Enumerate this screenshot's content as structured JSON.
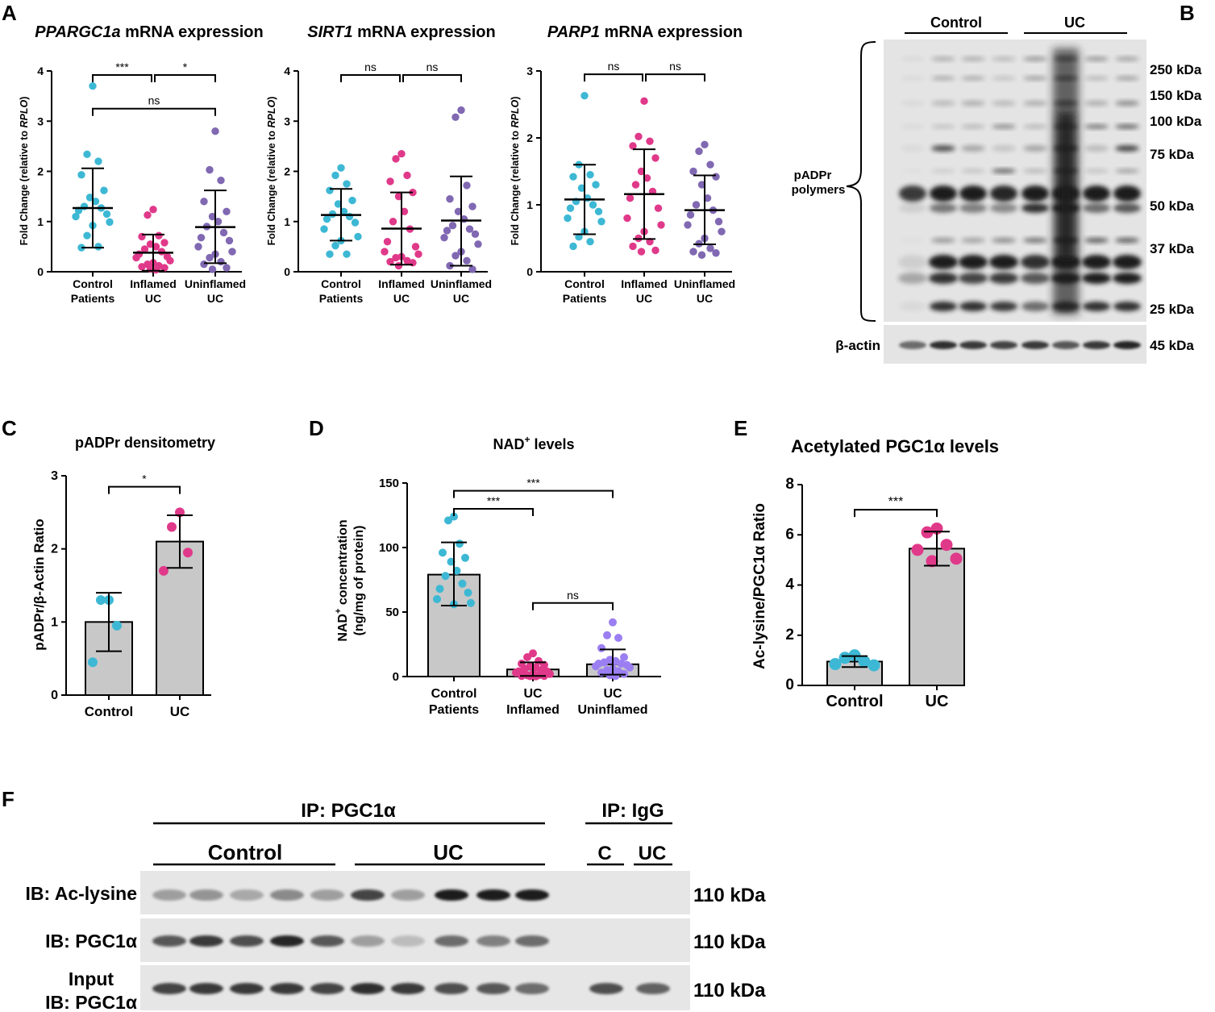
{
  "panel_letters": {
    "a": "A",
    "b": "B",
    "c": "C",
    "d": "D",
    "e": "E",
    "f": "F"
  },
  "colors": {
    "control": "#3db8d4",
    "inflamed": "#e0398a",
    "uninflamed": "#8068b2",
    "uninflamed_d": "#9b7ff2",
    "bar": "#c8c8c8",
    "axis": "#000000",
    "blot_bg": "#e6e6e6",
    "band": "#1a1a1a"
  },
  "panel_a": [
    {
      "title_italic": "PPARGC1a",
      "title_rest": " mRNA expression",
      "ylabel_pre": "Fold Change (relative to ",
      "ylabel_italic": "RPLO",
      "ylabel_post": ")"
    },
    {
      "title_italic": "SIRT1",
      "title_rest": " mRNA expression",
      "ylabel_pre": "Fold Change (relative to ",
      "ylabel_italic": "RPLO",
      "ylabel_post": ")"
    },
    {
      "title_italic": "PARP1",
      "title_rest": " mRNA expression",
      "ylabel_pre": "Fold Change (relative to ",
      "ylabel_italic": "RPLO",
      "ylabel_post": ")"
    }
  ],
  "panel_b": {
    "groups": [
      "Control",
      "UC"
    ],
    "brace_label": [
      "pADPr",
      "polymers"
    ],
    "mw_labels": [
      "250 kDa",
      "150 kDa",
      "100 kDa",
      "75 kDa",
      "50 kDa",
      "37 kDa",
      "25 kDa"
    ],
    "actin_label": "β-actin",
    "actin_mw": "45 kDa"
  },
  "panel_f": {
    "ip_main": "IP: PGC1α",
    "ip_igg": "IP: IgG",
    "group_control": "Control",
    "group_uc": "UC",
    "igg_c": "C",
    "igg_uc": "UC",
    "row1_label": "IB: Ac-lysine",
    "row2_label": "IB: PGC1α",
    "row3_label_1": "Input",
    "row3_label_2": "IB: PGC1α",
    "mw": [
      "110 kDa",
      "110 kDa",
      "110 kDa"
    ]
  },
  "chart_data": [
    {
      "id": "A1",
      "type": "scatter",
      "title": "PPARGC1a mRNA expression",
      "ylabel": "Fold Change (relative to RPLO)",
      "ylim": [
        0,
        4
      ],
      "yticks": [
        0,
        1,
        2,
        3,
        4
      ],
      "categories": [
        "Control\nPatients",
        "Inflamed\nUC",
        "Uninflamed\nUC"
      ],
      "groups": [
        {
          "name": "Control Patients",
          "color_key": "control",
          "mean": 1.27,
          "sd_low": 0.48,
          "sd_high": 2.06,
          "points": [
            3.7,
            2.34,
            2.2,
            1.93,
            1.62,
            1.48,
            1.4,
            1.3,
            1.27,
            1.22,
            1.15,
            1.1,
            0.99,
            0.92,
            0.72,
            0.5,
            0.48
          ]
        },
        {
          "name": "Inflamed UC",
          "color_key": "inflamed",
          "mean": 0.38,
          "sd_low": 0.02,
          "sd_high": 0.74,
          "points": [
            1.24,
            1.13,
            0.72,
            0.7,
            0.58,
            0.55,
            0.5,
            0.45,
            0.4,
            0.35,
            0.3,
            0.28,
            0.22,
            0.18,
            0.15,
            0.12,
            0.1,
            0.08,
            0.06,
            0.04
          ]
        },
        {
          "name": "Uninflamed UC",
          "color_key": "uninflamed",
          "mean": 0.89,
          "sd_low": 0.17,
          "sd_high": 1.62,
          "points": [
            2.8,
            2.03,
            1.82,
            1.4,
            1.2,
            1.1,
            1.0,
            0.9,
            0.78,
            0.68,
            0.62,
            0.5,
            0.4,
            0.35,
            0.28,
            0.2,
            0.15,
            0.08,
            0.05
          ]
        }
      ],
      "annotations": [
        {
          "from": 0,
          "to": 1,
          "text": "***",
          "y": 3.92
        },
        {
          "from": 1,
          "to": 2,
          "text": "*",
          "y": 3.92
        },
        {
          "from": 0,
          "to": 2,
          "text": "ns",
          "y": 3.25
        }
      ]
    },
    {
      "id": "A2",
      "type": "scatter",
      "title": "SIRT1 mRNA expression",
      "ylabel": "Fold Change (relative to RPLO)",
      "ylim": [
        0,
        4
      ],
      "yticks": [
        0,
        1,
        2,
        3,
        4
      ],
      "categories": [
        "Control\nPatients",
        "Inflamed\nUC",
        "Uninflamed\nUC"
      ],
      "groups": [
        {
          "name": "Control Patients",
          "color_key": "control",
          "mean": 1.13,
          "sd_low": 0.62,
          "sd_high": 1.65,
          "points": [
            2.07,
            1.92,
            1.75,
            1.62,
            1.42,
            1.35,
            1.2,
            1.15,
            1.1,
            1.05,
            0.98,
            0.85,
            0.7,
            0.62,
            0.52,
            0.35,
            0.35
          ]
        },
        {
          "name": "Inflamed UC",
          "color_key": "inflamed",
          "mean": 0.86,
          "sd_low": 0.14,
          "sd_high": 1.58,
          "points": [
            2.35,
            2.25,
            1.92,
            1.8,
            1.58,
            1.5,
            1.2,
            1.0,
            0.85,
            0.6,
            0.5,
            0.4,
            0.35,
            0.3,
            0.28,
            0.22,
            0.2,
            0.18,
            0.12
          ]
        },
        {
          "name": "Uninflamed UC",
          "color_key": "uninflamed",
          "mean": 1.02,
          "sd_low": 0.12,
          "sd_high": 1.9,
          "points": [
            3.22,
            3.08,
            1.72,
            1.45,
            1.3,
            1.2,
            1.05,
            0.92,
            0.85,
            0.82,
            0.75,
            0.68,
            0.55,
            0.4,
            0.32,
            0.22,
            0.12,
            0.05
          ]
        }
      ],
      "annotations": [
        {
          "from": 0,
          "to": 1,
          "text": "ns",
          "y": 3.92
        },
        {
          "from": 1,
          "to": 2,
          "text": "ns",
          "y": 3.92
        }
      ]
    },
    {
      "id": "A3",
      "type": "scatter",
      "title": "PARP1 mRNA expression",
      "ylabel": "Fold Change (relative to RPLO)",
      "ylim": [
        0,
        3
      ],
      "yticks": [
        0,
        1,
        2,
        3
      ],
      "categories": [
        "Control\nPatients",
        "Inflamed\nUC",
        "Uninflamed\nUC"
      ],
      "groups": [
        {
          "name": "Control Patients",
          "color_key": "control",
          "mean": 1.08,
          "sd_low": 0.56,
          "sd_high": 1.6,
          "points": [
            2.63,
            1.6,
            1.45,
            1.42,
            1.3,
            1.25,
            1.1,
            1.05,
            1.0,
            0.95,
            0.9,
            0.8,
            0.75,
            0.6,
            0.52,
            0.45,
            0.38
          ]
        },
        {
          "name": "Inflamed UC",
          "color_key": "inflamed",
          "mean": 1.16,
          "sd_low": 0.49,
          "sd_high": 1.83,
          "points": [
            2.55,
            2.02,
            1.95,
            1.88,
            1.7,
            1.5,
            1.4,
            1.3,
            1.2,
            1.1,
            0.95,
            0.8,
            0.7,
            0.6,
            0.5,
            0.45,
            0.38,
            0.32,
            0.3
          ]
        },
        {
          "name": "Uninflamed UC",
          "color_key": "uninflamed",
          "mean": 0.92,
          "sd_low": 0.41,
          "sd_high": 1.44,
          "points": [
            1.9,
            1.8,
            1.6,
            1.5,
            1.42,
            1.3,
            1.1,
            1.0,
            0.92,
            0.85,
            0.75,
            0.7,
            0.6,
            0.5,
            0.42,
            0.35,
            0.3,
            0.28,
            0.25
          ]
        }
      ],
      "annotations": [
        {
          "from": 0,
          "to": 1,
          "text": "ns",
          "y": 2.95
        },
        {
          "from": 1,
          "to": 2,
          "text": "ns",
          "y": 2.95
        }
      ]
    },
    {
      "id": "C",
      "type": "bar",
      "title": "pADPr densitometry",
      "ylabel": "pADPr/β-Actin Ratio",
      "ylim": [
        0,
        3
      ],
      "yticks": [
        0,
        1,
        2,
        3
      ],
      "categories": [
        "Control",
        "UC"
      ],
      "values": [
        1.0,
        2.1
      ],
      "sd": [
        0.4,
        0.36
      ],
      "points": [
        [
          1.3,
          1.3,
          0.95,
          0.45
        ],
        [
          2.5,
          2.3,
          1.95,
          1.7
        ]
      ],
      "color_keys": [
        "control",
        "inflamed"
      ],
      "annotations": [
        {
          "from": 0,
          "to": 1,
          "text": "*",
          "y": 2.85
        }
      ]
    },
    {
      "id": "D",
      "type": "bar",
      "title": "NAD+ levels",
      "title_main": "NAD",
      "title_sup": "+",
      "title_rest": " levels",
      "ylabel_line1_main": "NAD",
      "ylabel_line1_sup": "+",
      "ylabel_line1_rest": " concentration",
      "ylabel_line2": "(ng/mg of protein)",
      "ylabel": "NAD+ concentration (ng/mg of protein)",
      "ylim": [
        0,
        150
      ],
      "yticks": [
        0,
        50,
        100,
        150
      ],
      "categories": [
        "Control\nPatients",
        "UC\nInflamed",
        "UC\nUninflamed"
      ],
      "values": [
        79,
        5.5,
        9.5
      ],
      "sd_low": [
        55,
        0.5,
        1.5
      ],
      "sd_high": [
        104,
        11,
        21
      ],
      "points": [
        [
          124,
          121,
          103,
          96,
          92,
          89,
          82,
          78,
          72,
          68,
          65,
          60,
          57,
          56
        ],
        [
          18,
          15,
          12,
          10,
          9,
          8,
          7,
          6,
          5,
          4,
          4,
          3,
          2,
          2,
          1,
          1,
          0.5,
          0.5,
          0.3,
          0.2
        ],
        [
          42,
          32,
          30,
          22,
          15,
          13,
          12,
          11,
          10,
          10,
          9,
          8,
          7,
          6,
          5,
          4,
          3,
          2,
          1,
          0.5
        ]
      ],
      "color_keys": [
        "control",
        "inflamed",
        "uninflamed_d"
      ],
      "annotations": [
        {
          "from": 0,
          "to": 1,
          "text": "***",
          "y": 130
        },
        {
          "from": 0,
          "to": 2,
          "text": "***",
          "y": 144
        },
        {
          "from": 1,
          "to": 2,
          "text": "ns",
          "y": 57
        }
      ]
    },
    {
      "id": "E",
      "type": "bar",
      "title": "Acetylated PGC1α levels",
      "ylabel": "Ac-lysine/PGC1α Ratio",
      "ylim": [
        0,
        8
      ],
      "yticks": [
        0,
        2,
        4,
        6,
        8
      ],
      "categories": [
        "Control",
        "UC"
      ],
      "values": [
        0.95,
        5.45
      ],
      "sd": [
        0.22,
        0.68
      ],
      "points": [
        [
          1.2,
          1.1,
          0.95,
          0.85,
          0.8
        ],
        [
          6.25,
          6.1,
          5.6,
          5.4,
          5.05,
          4.95
        ]
      ],
      "color_keys": [
        "control",
        "inflamed"
      ],
      "annotations": [
        {
          "from": 0,
          "to": 1,
          "text": "***",
          "y": 7.0
        }
      ]
    }
  ]
}
